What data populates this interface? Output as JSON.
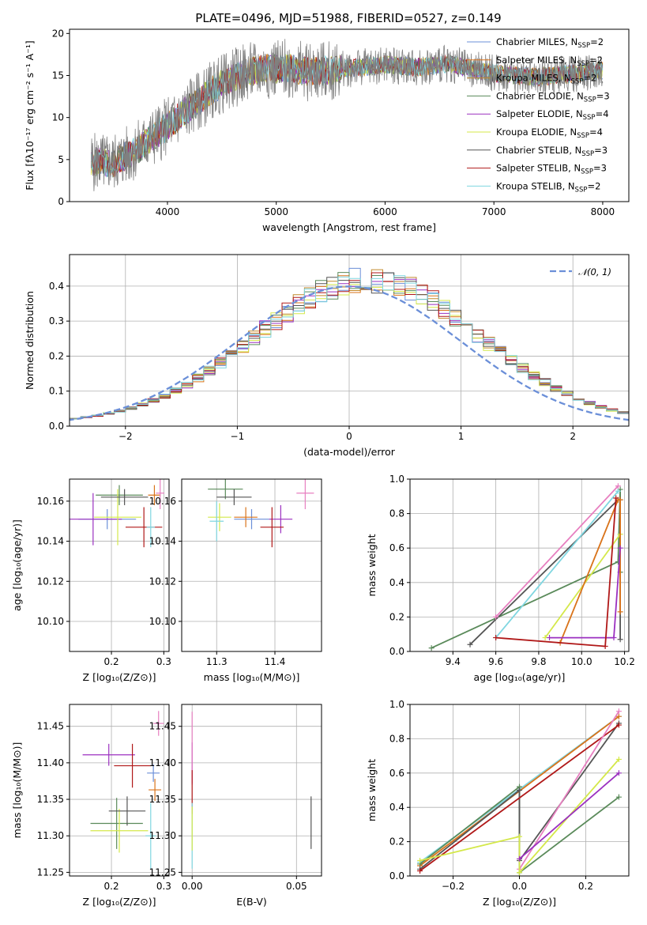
{
  "figure": {
    "title": "PLATE=0496, MJD=51988, FIBERID=0527, z=0.149"
  },
  "chart_data": [
    {
      "id": "spectrum",
      "type": "line",
      "xlabel": "wavelength [Angstrom, rest frame]",
      "ylabel": "Flux [fλ10⁻¹⁷ erg cm⁻² s⁻¹ A⁻¹]",
      "xlim": [
        3100,
        8240
      ],
      "ylim": [
        0,
        20.5
      ],
      "xticks": [
        4000,
        5000,
        6000,
        7000,
        8000
      ],
      "yticks": [
        0,
        5,
        10,
        15,
        20
      ],
      "grid": false,
      "legend_position": "top-right",
      "data_color": "#808080",
      "continuum": {
        "x": [
          3300,
          3500,
          3700,
          3900,
          4000,
          4100,
          4200,
          4300,
          4400,
          4500,
          4700,
          4900,
          5100,
          5300,
          5500,
          5800,
          6000,
          6300,
          6600,
          6800,
          7100,
          7400,
          7700,
          8000
        ],
        "y": [
          4.7,
          4.6,
          6.0,
          8.0,
          9.0,
          10.0,
          11.2,
          12.0,
          13.2,
          14.0,
          15.2,
          15.8,
          15.9,
          15.4,
          15.6,
          16.0,
          16.3,
          16.0,
          16.4,
          15.7,
          15.1,
          14.8,
          15.2,
          15.6
        ]
      },
      "legend": [
        {
          "label": "Chabrier MILES, N",
          "sub": "SSP",
          "tail": "=2",
          "color": "#6b8fd8"
        },
        {
          "label": "Salpeter MILES, N",
          "sub": "SSP",
          "tail": "=2",
          "color": "#d9731a"
        },
        {
          "label": "Kroupa MILES, N",
          "sub": "SSP",
          "tail": "=2",
          "color": "#c28a2c"
        },
        {
          "label": "Chabrier ELODIE, N",
          "sub": "SSP",
          "tail": "=3",
          "color": "#5a8a5a"
        },
        {
          "label": "Salpeter ELODIE, N",
          "sub": "SSP",
          "tail": "=4",
          "color": "#9b30c0"
        },
        {
          "label": "Kroupa ELODIE, N",
          "sub": "SSP",
          "tail": "=4",
          "color": "#d4e84a"
        },
        {
          "label": "Chabrier STELIB, N",
          "sub": "SSP",
          "tail": "=3",
          "color": "#555555"
        },
        {
          "label": "Salpeter STELIB, N",
          "sub": "SSP",
          "tail": "=3",
          "color": "#b01818"
        },
        {
          "label": "Kroupa STELIB, N",
          "sub": "SSP",
          "tail": "=2",
          "color": "#7fd6e0"
        }
      ]
    },
    {
      "id": "residuals",
      "type": "line",
      "xlabel": "(data-model)/error",
      "ylabel": "Normed distribution",
      "xlim": [
        -2.5,
        2.5
      ],
      "ylim": [
        0,
        0.49
      ],
      "xticks": [
        -2,
        -1,
        0,
        1,
        2
      ],
      "yticks": [
        0.0,
        0.1,
        0.2,
        0.3,
        0.4
      ],
      "grid": true,
      "legend": {
        "label": "𝒩(0, 1)",
        "color": "#6b8fd8",
        "position": "top-right"
      }
    },
    {
      "id": "age_vs_Z",
      "type": "scatter",
      "xlabel": "Z [log₁₀(Z/Z⊙)]",
      "ylabel": "age  [log₁₀(age/yr)]",
      "xlim": [
        0.12,
        0.31
      ],
      "ylim": [
        10.085,
        10.171
      ],
      "xticks": [
        0.2,
        0.3
      ],
      "yticks": [
        10.1,
        10.12,
        10.14,
        10.16
      ],
      "grid": true,
      "points": [
        {
          "x": 0.192,
          "y": 10.151,
          "xerr": 0.055,
          "yerr": 0.005,
          "color": "#6b8fd8"
        },
        {
          "x": 0.282,
          "y": 10.163,
          "xerr": 0.012,
          "yerr": 0.005,
          "color": "#d9731a"
        },
        {
          "x": 0.215,
          "y": 10.163,
          "xerr": 0.045,
          "yerr": 0.005,
          "color": "#5a8a5a"
        },
        {
          "x": 0.165,
          "y": 10.151,
          "xerr": 0.055,
          "yerr": 0.013,
          "color": "#9b30c0"
        },
        {
          "x": 0.212,
          "y": 10.152,
          "xerr": 0.045,
          "yerr": 0.014,
          "color": "#d4e84a"
        },
        {
          "x": 0.225,
          "y": 10.162,
          "xerr": 0.045,
          "yerr": 0.004,
          "color": "#555555"
        },
        {
          "x": 0.262,
          "y": 10.147,
          "xerr": 0.035,
          "yerr": 0.01,
          "color": "#b01818"
        },
        {
          "x": 0.293,
          "y": 10.164,
          "xerr": 0.008,
          "yerr": 0.008,
          "color": "#e77fc0"
        },
        {
          "x": 0.275,
          "y": 10.147,
          "xerr": 0.008,
          "yerr": 0.01,
          "color": "#7fd6e0"
        }
      ]
    },
    {
      "id": "age_vs_mass",
      "type": "scatter",
      "xlabel": "mass [log₁₀(M/M⊙)]",
      "ylabel": "",
      "xlim": [
        11.24,
        11.48
      ],
      "ylim": [
        10.085,
        10.171
      ],
      "xticks": [
        11.3,
        11.4
      ],
      "yticks": [
        10.1,
        10.12,
        10.14,
        10.16
      ],
      "grid": true,
      "points": [
        {
          "x": 11.36,
          "y": 10.151,
          "xerr": 0.03,
          "yerr": 0.005,
          "color": "#6b8fd8"
        },
        {
          "x": 11.35,
          "y": 10.152,
          "xerr": 0.02,
          "yerr": 0.005,
          "color": "#d9731a"
        },
        {
          "x": 11.315,
          "y": 10.166,
          "xerr": 0.03,
          "yerr": 0.005,
          "color": "#5a8a5a"
        },
        {
          "x": 11.41,
          "y": 10.151,
          "xerr": 0.02,
          "yerr": 0.007,
          "color": "#9b30c0"
        },
        {
          "x": 11.305,
          "y": 10.152,
          "xerr": 0.02,
          "yerr": 0.007,
          "color": "#d4e84a"
        },
        {
          "x": 11.33,
          "y": 10.162,
          "xerr": 0.03,
          "yerr": 0.004,
          "color": "#555555"
        },
        {
          "x": 11.395,
          "y": 10.147,
          "xerr": 0.02,
          "yerr": 0.01,
          "color": "#b01818"
        },
        {
          "x": 11.452,
          "y": 10.164,
          "xerr": 0.015,
          "yerr": 0.008,
          "color": "#e77fc0"
        },
        {
          "x": 11.3,
          "y": 10.15,
          "xerr": 0.012,
          "yerr": 0.01,
          "color": "#7fd6e0"
        }
      ]
    },
    {
      "id": "mass_weight_vs_age",
      "type": "line",
      "xlabel": "age  [log₁₀(age/yr)]",
      "ylabel": "mass weight",
      "xlim": [
        9.2,
        10.22
      ],
      "ylim": [
        0,
        1.0
      ],
      "xticks": [
        9.4,
        9.6,
        9.8,
        10.0,
        10.2
      ],
      "yticks": [
        0.0,
        0.2,
        0.4,
        0.6,
        0.8,
        1.0
      ],
      "grid": true,
      "series": [
        {
          "color": "#5a8a5a",
          "x": [
            9.3,
            10.17,
            10.18,
            10.18
          ],
          "y": [
            0.02,
            0.52,
            0.94,
            0.46
          ]
        },
        {
          "color": "#555555",
          "x": [
            9.48,
            10.17,
            10.18,
            10.18
          ],
          "y": [
            0.04,
            0.88,
            0.88,
            0.07
          ]
        },
        {
          "color": "#7fd6e0",
          "x": [
            9.6,
            10.17
          ],
          "y": [
            0.08,
            0.93
          ]
        },
        {
          "color": "#e77fc0",
          "x": [
            9.6,
            10.17
          ],
          "y": [
            0.2,
            0.96
          ]
        },
        {
          "color": "#d4e84a",
          "x": [
            9.83,
            10.18
          ],
          "y": [
            0.08,
            0.68
          ]
        },
        {
          "color": "#d9731a",
          "x": [
            9.9,
            10.17,
            10.18,
            10.18
          ],
          "y": [
            0.05,
            0.88,
            0.88,
            0.23
          ]
        },
        {
          "color": "#9b30c0",
          "x": [
            9.85,
            10.15,
            10.18
          ],
          "y": [
            0.08,
            0.08,
            0.6
          ]
        },
        {
          "color": "#b01818",
          "x": [
            9.6,
            10.11,
            10.16
          ],
          "y": [
            0.08,
            0.03,
            0.89
          ]
        }
      ]
    },
    {
      "id": "mass_vs_Z",
      "type": "scatter",
      "xlabel": "Z [log₁₀(Z/Z⊙)]",
      "ylabel": "mass [log₁₀(M/M⊙)]",
      "xlim": [
        0.12,
        0.31
      ],
      "ylim": [
        11.245,
        11.48
      ],
      "xticks": [
        0.2,
        0.3
      ],
      "yticks": [
        11.25,
        11.3,
        11.35,
        11.4,
        11.45
      ],
      "grid": true,
      "points": [
        {
          "x": 0.28,
          "y": 11.386,
          "xerr": 0.012,
          "yerr": 0.012,
          "color": "#6b8fd8"
        },
        {
          "x": 0.283,
          "y": 11.363,
          "xerr": 0.012,
          "yerr": 0.015,
          "color": "#d9731a"
        },
        {
          "x": 0.21,
          "y": 11.317,
          "xerr": 0.05,
          "yerr": 0.035,
          "color": "#5a8a5a"
        },
        {
          "x": 0.195,
          "y": 11.411,
          "xerr": 0.05,
          "yerr": 0.015,
          "color": "#9b30c0"
        },
        {
          "x": 0.215,
          "y": 11.307,
          "xerr": 0.055,
          "yerr": 0.03,
          "color": "#d4e84a"
        },
        {
          "x": 0.23,
          "y": 11.334,
          "xerr": 0.035,
          "yerr": 0.02,
          "color": "#555555"
        },
        {
          "x": 0.24,
          "y": 11.396,
          "xerr": 0.035,
          "yerr": 0.03,
          "color": "#b01818"
        },
        {
          "x": 0.29,
          "y": 11.454,
          "xerr": 0.01,
          "yerr": 0.017,
          "color": "#e77fc0"
        },
        {
          "x": 0.275,
          "y": 11.3,
          "xerr": 0.01,
          "yerr": 0.045,
          "color": "#7fd6e0"
        }
      ]
    },
    {
      "id": "mass_vs_EBV",
      "type": "scatter",
      "xlabel": "E(B-V)",
      "ylabel": "",
      "xlim": [
        -0.005,
        0.062
      ],
      "ylim": [
        11.245,
        11.48
      ],
      "xticks": [
        0.0,
        0.05
      ],
      "yticks": [
        11.25,
        11.3,
        11.35,
        11.4,
        11.45
      ],
      "grid": true,
      "points": [
        {
          "x": 0.0,
          "y": 11.4,
          "xerr": 0,
          "yerr": 0.028,
          "color": "#9b30c0"
        },
        {
          "x": 0.0,
          "y": 11.42,
          "xerr": 0,
          "yerr": 0.05,
          "color": "#e77fc0"
        },
        {
          "x": 0.0,
          "y": 11.36,
          "xerr": 0,
          "yerr": 0.03,
          "color": "#b01818"
        },
        {
          "x": 0.0,
          "y": 11.3,
          "xerr": 0,
          "yerr": 0.045,
          "color": "#7fd6e0"
        },
        {
          "x": 0.0,
          "y": 11.31,
          "xerr": 0,
          "yerr": 0.03,
          "color": "#d4e84a"
        },
        {
          "x": 0.057,
          "y": 11.318,
          "xerr": 0,
          "yerr": 0.036,
          "color": "#555555"
        }
      ]
    },
    {
      "id": "mass_weight_vs_Z",
      "type": "line",
      "xlabel": "Z [log₁₀(Z/Z⊙)]",
      "ylabel": "mass weight",
      "xlim": [
        -0.33,
        0.33
      ],
      "ylim": [
        0,
        1.0
      ],
      "xticks": [
        -0.2,
        0.0,
        0.2
      ],
      "yticks": [
        0.0,
        0.2,
        0.4,
        0.6,
        0.8,
        1.0
      ],
      "grid": true,
      "series": [
        {
          "color": "#7fd6e0",
          "x": [
            -0.3,
            0.3
          ],
          "y": [
            0.08,
            0.93
          ]
        },
        {
          "color": "#d9731a",
          "x": [
            -0.3,
            0.3
          ],
          "y": [
            0.06,
            0.93
          ]
        },
        {
          "color": "#5a8a5a",
          "x": [
            -0.3,
            0.0,
            0.0,
            0.0,
            0.3
          ],
          "y": [
            0.07,
            0.52,
            0.02,
            0.02,
            0.46
          ]
        },
        {
          "color": "#555555",
          "x": [
            -0.3,
            0.0,
            0.0,
            0.3
          ],
          "y": [
            0.04,
            0.5,
            0.09,
            0.89
          ]
        },
        {
          "color": "#b01818",
          "x": [
            -0.3,
            0.3
          ],
          "y": [
            0.03,
            0.88
          ]
        },
        {
          "color": "#e77fc0",
          "x": [
            0.0,
            0.3
          ],
          "y": [
            0.04,
            0.96
          ]
        },
        {
          "color": "#d4e84a",
          "x": [
            -0.3,
            0.0,
            0.0,
            0.3
          ],
          "y": [
            0.09,
            0.23,
            0.02,
            0.68
          ]
        },
        {
          "color": "#9b30c0",
          "x": [
            0.0,
            0.3
          ],
          "y": [
            0.1,
            0.6
          ]
        }
      ]
    }
  ]
}
